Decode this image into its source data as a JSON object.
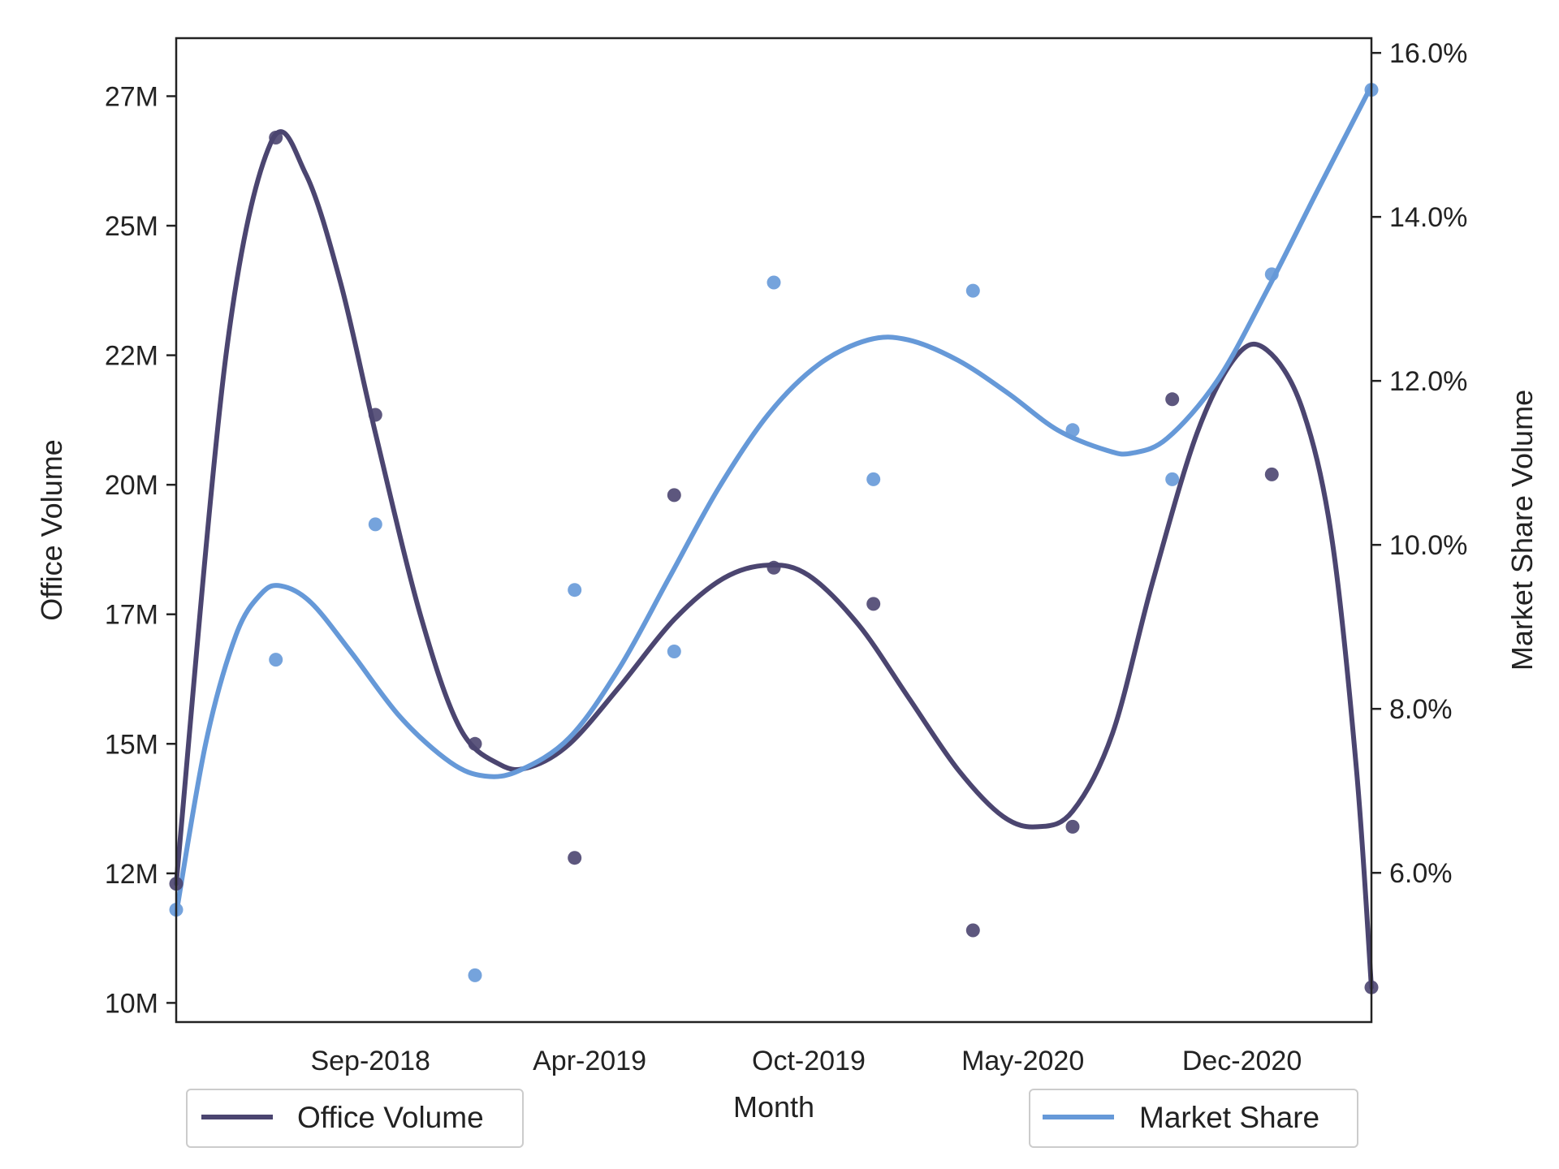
{
  "chart_data": {
    "type": "line",
    "xlabel": "Month",
    "ylabel_left": "Office Volume",
    "ylabel_right": "Market Share Volume",
    "x_ticks": [
      "Sep-2018",
      "Apr-2019",
      "Oct-2019",
      "May-2020",
      "Dec-2020"
    ],
    "y_left_ticks": [
      "27M",
      "25M",
      "22M",
      "20M",
      "17M",
      "15M",
      "12M",
      "10M"
    ],
    "y_right_ticks": [
      "16.0%",
      "14.0%",
      "12.0%",
      "10.0%",
      "8.0%",
      "6.0%"
    ],
    "x_domain": [
      0,
      12
    ],
    "x_tick_positions": [
      1.95,
      4.15,
      6.35,
      8.5,
      10.7
    ],
    "y_left_lim": [
      9.13,
      28.12
    ],
    "y_left_tick_values": [
      27.0,
      24.5,
      22.0,
      19.5,
      17.0,
      14.5,
      12.0,
      9.5
    ],
    "y_right_lim": [
      4.18,
      16.18
    ],
    "y_right_tick_values": [
      16.0,
      14.0,
      12.0,
      10.0,
      8.0,
      6.0
    ],
    "grid": false,
    "series": [
      {
        "name": "Office Volume",
        "axis": "left",
        "color": "#4b4570",
        "points": [
          {
            "x": 0,
            "y": 11.8
          },
          {
            "x": 1,
            "y": 26.2
          },
          {
            "x": 2,
            "y": 20.85
          },
          {
            "x": 3,
            "y": 14.5
          },
          {
            "x": 4,
            "y": 12.3
          },
          {
            "x": 5,
            "y": 19.3
          },
          {
            "x": 6,
            "y": 17.9
          },
          {
            "x": 7,
            "y": 17.2
          },
          {
            "x": 8,
            "y": 10.9
          },
          {
            "x": 9,
            "y": 12.9
          },
          {
            "x": 10,
            "y": 21.15
          },
          {
            "x": 11,
            "y": 19.7
          },
          {
            "x": 12,
            "y": 9.8
          }
        ],
        "curve": [
          {
            "x": 0,
            "y": 11.8
          },
          {
            "x": 0.5,
            "y": 22.0
          },
          {
            "x": 0.95,
            "y": 26.1
          },
          {
            "x": 1.3,
            "y": 25.5
          },
          {
            "x": 1.65,
            "y": 23.4
          },
          {
            "x": 2.0,
            "y": 20.5
          },
          {
            "x": 2.45,
            "y": 17.0
          },
          {
            "x": 2.85,
            "y": 14.8
          },
          {
            "x": 3.25,
            "y": 14.1
          },
          {
            "x": 3.55,
            "y": 14.05
          },
          {
            "x": 3.95,
            "y": 14.5
          },
          {
            "x": 4.45,
            "y": 15.6
          },
          {
            "x": 5.0,
            "y": 16.9
          },
          {
            "x": 5.5,
            "y": 17.7
          },
          {
            "x": 5.95,
            "y": 17.95
          },
          {
            "x": 6.35,
            "y": 17.75
          },
          {
            "x": 6.85,
            "y": 16.8
          },
          {
            "x": 7.35,
            "y": 15.4
          },
          {
            "x": 7.85,
            "y": 14.0
          },
          {
            "x": 8.3,
            "y": 13.1
          },
          {
            "x": 8.65,
            "y": 12.9
          },
          {
            "x": 9.0,
            "y": 13.2
          },
          {
            "x": 9.4,
            "y": 14.7
          },
          {
            "x": 9.8,
            "y": 17.6
          },
          {
            "x": 10.25,
            "y": 20.5
          },
          {
            "x": 10.65,
            "y": 22.0
          },
          {
            "x": 10.95,
            "y": 22.1
          },
          {
            "x": 11.3,
            "y": 21.0
          },
          {
            "x": 11.6,
            "y": 18.5
          },
          {
            "x": 11.85,
            "y": 14.0
          },
          {
            "x": 12.0,
            "y": 9.8
          }
        ]
      },
      {
        "name": "Market Share",
        "axis": "right",
        "color": "#6699d8",
        "points": [
          {
            "x": 0,
            "y": 5.55
          },
          {
            "x": 1,
            "y": 8.6
          },
          {
            "x": 2,
            "y": 10.25
          },
          {
            "x": 3,
            "y": 4.75
          },
          {
            "x": 4,
            "y": 9.45
          },
          {
            "x": 5,
            "y": 8.7
          },
          {
            "x": 6,
            "y": 13.2
          },
          {
            "x": 7,
            "y": 10.8
          },
          {
            "x": 8,
            "y": 13.1
          },
          {
            "x": 9,
            "y": 11.4
          },
          {
            "x": 10,
            "y": 10.8
          },
          {
            "x": 11,
            "y": 13.3
          },
          {
            "x": 12,
            "y": 15.55
          }
        ],
        "curve": [
          {
            "x": 0,
            "y": 5.5
          },
          {
            "x": 0.3,
            "y": 7.6
          },
          {
            "x": 0.6,
            "y": 8.9
          },
          {
            "x": 0.85,
            "y": 9.4
          },
          {
            "x": 1.05,
            "y": 9.5
          },
          {
            "x": 1.35,
            "y": 9.3
          },
          {
            "x": 1.75,
            "y": 8.7
          },
          {
            "x": 2.25,
            "y": 7.9
          },
          {
            "x": 2.75,
            "y": 7.35
          },
          {
            "x": 3.1,
            "y": 7.18
          },
          {
            "x": 3.45,
            "y": 7.25
          },
          {
            "x": 3.95,
            "y": 7.65
          },
          {
            "x": 4.45,
            "y": 8.5
          },
          {
            "x": 4.95,
            "y": 9.6
          },
          {
            "x": 5.45,
            "y": 10.7
          },
          {
            "x": 5.95,
            "y": 11.6
          },
          {
            "x": 6.45,
            "y": 12.2
          },
          {
            "x": 6.95,
            "y": 12.5
          },
          {
            "x": 7.35,
            "y": 12.5
          },
          {
            "x": 7.85,
            "y": 12.25
          },
          {
            "x": 8.35,
            "y": 11.85
          },
          {
            "x": 8.85,
            "y": 11.4
          },
          {
            "x": 9.35,
            "y": 11.15
          },
          {
            "x": 9.6,
            "y": 11.12
          },
          {
            "x": 9.95,
            "y": 11.3
          },
          {
            "x": 10.45,
            "y": 12.0
          },
          {
            "x": 10.95,
            "y": 13.1
          },
          {
            "x": 11.45,
            "y": 14.3
          },
          {
            "x": 12.0,
            "y": 15.6
          }
        ]
      }
    ],
    "legends": [
      {
        "label": "Office Volume",
        "placement": "lower-left, below plot"
      },
      {
        "label": "Market Share",
        "placement": "lower-right, below plot"
      }
    ]
  }
}
